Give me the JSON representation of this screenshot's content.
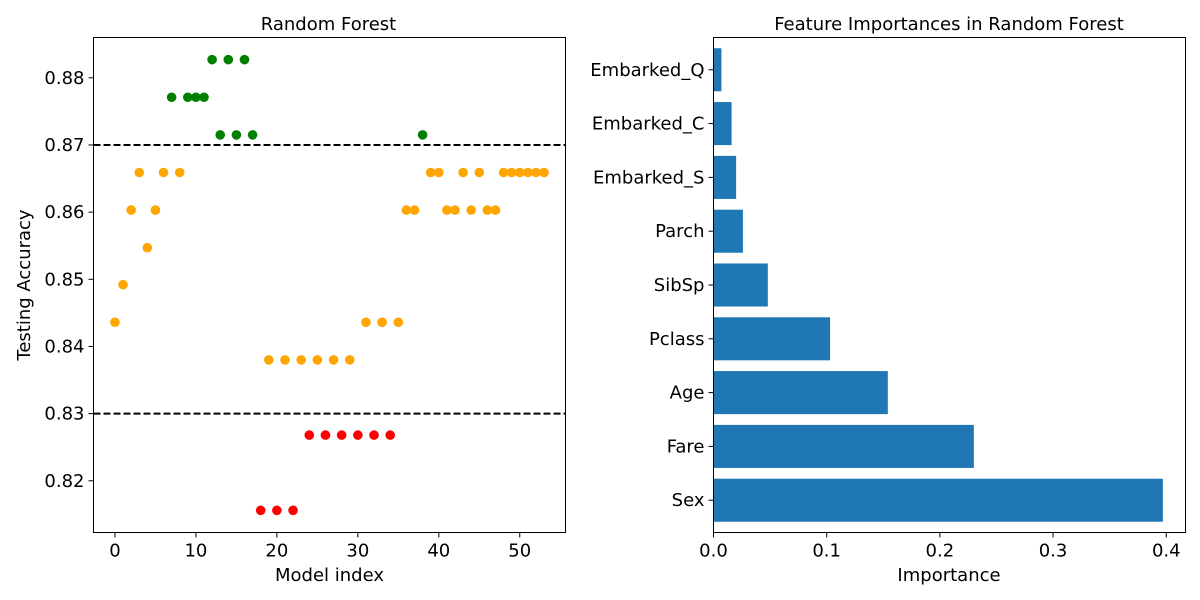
{
  "chart_data": [
    {
      "type": "scatter",
      "title": "Random Forest",
      "xlabel": "Model index",
      "ylabel": "Testing Accuracy",
      "xlim": [
        -2.65,
        55.65
      ],
      "ylim": [
        0.8123,
        0.886
      ],
      "xticks": [
        0,
        10,
        20,
        30,
        40,
        50
      ],
      "yticks": [
        0.82,
        0.83,
        0.84,
        0.85,
        0.86,
        0.87,
        0.88
      ],
      "ytick_labels": [
        "0.82",
        "0.83",
        "0.84",
        "0.85",
        "0.86",
        "0.87",
        "0.88"
      ],
      "hlines": [
        {
          "y": 0.87,
          "style": "dashed",
          "color": "#000000"
        },
        {
          "y": 0.83,
          "style": "dashed",
          "color": "#000000"
        }
      ],
      "colors": {
        "high": "#008000",
        "mid": "#ffa500",
        "low": "#ff0000"
      },
      "x": [
        0,
        1,
        2,
        3,
        4,
        5,
        6,
        7,
        8,
        9,
        10,
        11,
        12,
        13,
        14,
        15,
        16,
        17,
        18,
        19,
        20,
        21,
        22,
        23,
        24,
        25,
        26,
        27,
        28,
        29,
        30,
        31,
        32,
        33,
        34,
        35,
        36,
        37,
        38,
        39,
        40,
        41,
        42,
        43,
        44,
        45,
        46,
        47,
        48,
        49,
        50,
        51,
        52,
        53
      ],
      "y": [
        0.8436,
        0.8492,
        0.8603,
        0.8659,
        0.8547,
        0.8603,
        0.8659,
        0.8771,
        0.8659,
        0.8771,
        0.8771,
        0.8771,
        0.8827,
        0.8715,
        0.8827,
        0.8715,
        0.8827,
        0.8715,
        0.8156,
        0.838,
        0.8156,
        0.838,
        0.8156,
        0.838,
        0.8268,
        0.838,
        0.8268,
        0.838,
        0.8268,
        0.838,
        0.8268,
        0.8436,
        0.8268,
        0.8436,
        0.8268,
        0.8436,
        0.8603,
        0.8603,
        0.8715,
        0.8659,
        0.8659,
        0.8603,
        0.8603,
        0.8659,
        0.8603,
        0.8659,
        0.8603,
        0.8603,
        0.8659,
        0.8659,
        0.8659,
        0.8659,
        0.8659,
        0.8659
      ],
      "grid": false
    },
    {
      "type": "bar",
      "orientation": "horizontal",
      "title": "Feature Importances in Random Forest",
      "xlabel": "Importance",
      "ylabel": "",
      "categories": [
        "Sex",
        "Fare",
        "Age",
        "Pclass",
        "SibSp",
        "Parch",
        "Embarked_S",
        "Embarked_C",
        "Embarked_Q"
      ],
      "values": [
        0.397,
        0.23,
        0.154,
        0.103,
        0.048,
        0.026,
        0.02,
        0.016,
        0.007
      ],
      "xlim": [
        0,
        0.417
      ],
      "xticks": [
        0.0,
        0.1,
        0.2,
        0.3,
        0.4
      ],
      "xtick_labels": [
        "0.0",
        "0.1",
        "0.2",
        "0.3",
        "0.4"
      ],
      "bar_color": "#1f77b4",
      "grid": false
    }
  ]
}
